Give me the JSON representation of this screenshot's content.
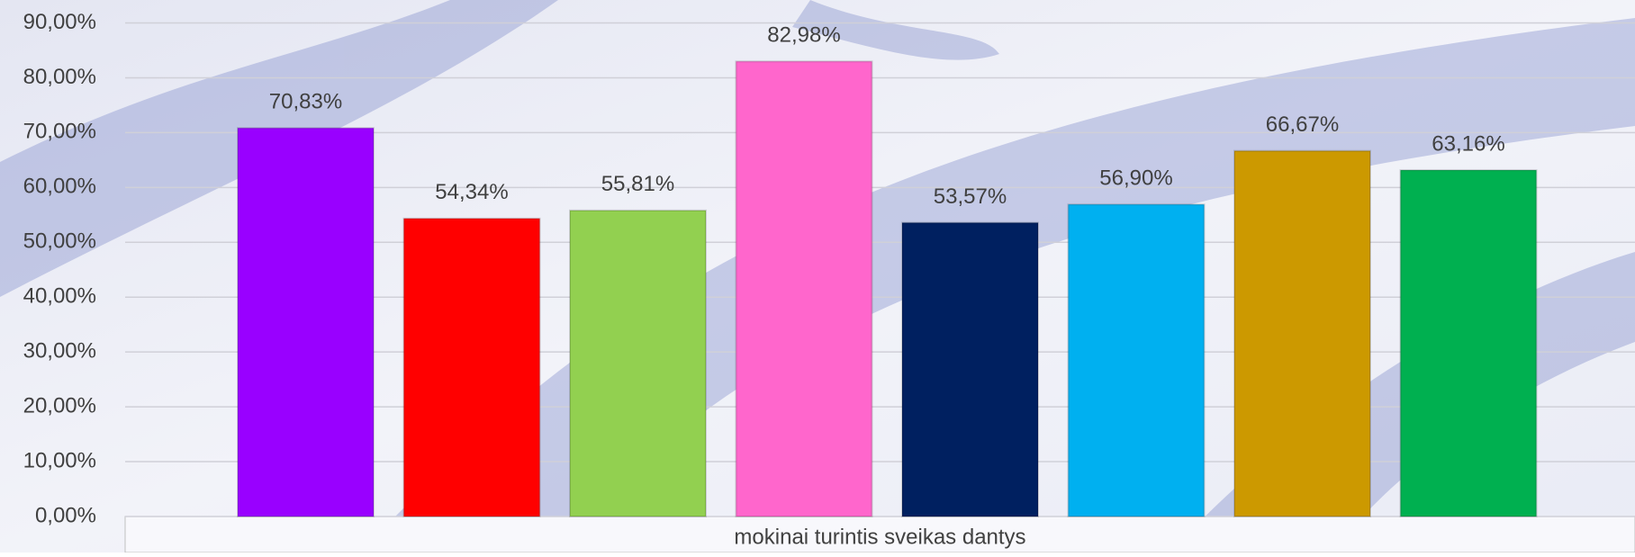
{
  "chart_data": {
    "type": "bar",
    "categories": [
      "mokinai turintis sveikas dantys"
    ],
    "series": [
      {
        "color": "#9900ff",
        "values": [
          70.83
        ],
        "value_labels": [
          "70,83%"
        ]
      },
      {
        "color": "#ff0000",
        "values": [
          54.34
        ],
        "value_labels": [
          "54,34%"
        ]
      },
      {
        "color": "#92d050",
        "values": [
          55.81
        ],
        "value_labels": [
          "55,81%"
        ]
      },
      {
        "color": "#ff66cc",
        "values": [
          82.98
        ],
        "value_labels": [
          "82,98%"
        ]
      },
      {
        "color": "#002060",
        "values": [
          53.57
        ],
        "value_labels": [
          "53,57%"
        ]
      },
      {
        "color": "#00b0f0",
        "values": [
          56.9
        ],
        "value_labels": [
          "56,90%"
        ]
      },
      {
        "color": "#cc9900",
        "values": [
          66.67
        ],
        "value_labels": [
          "66,67%"
        ]
      },
      {
        "color": "#00b050",
        "values": [
          63.16
        ],
        "value_labels": [
          "63,16%"
        ]
      }
    ],
    "ylim": [
      0,
      90
    ],
    "yticks": [
      {
        "value": 0,
        "label": "0,00%"
      },
      {
        "value": 10,
        "label": "10,00%"
      },
      {
        "value": 20,
        "label": "20,00%"
      },
      {
        "value": 30,
        "label": "30,00%"
      },
      {
        "value": 40,
        "label": "40,00%"
      },
      {
        "value": 50,
        "label": "50,00%"
      },
      {
        "value": 60,
        "label": "60,00%"
      },
      {
        "value": 70,
        "label": "70,00%"
      },
      {
        "value": 80,
        "label": "80,00%"
      },
      {
        "value": 90,
        "label": "90,00%"
      }
    ],
    "grid": true
  }
}
